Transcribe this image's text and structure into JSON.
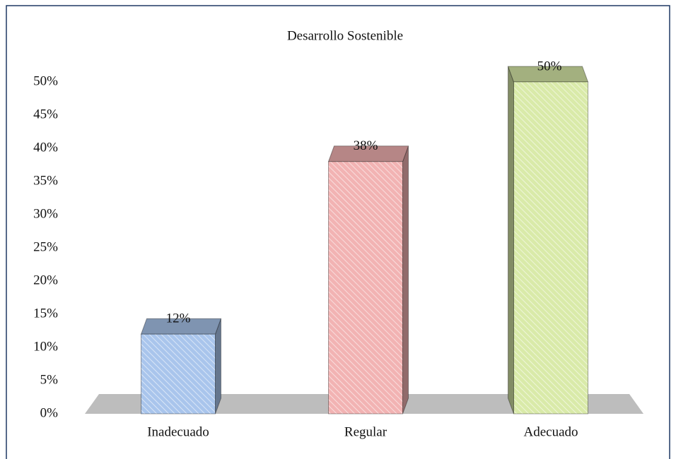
{
  "chart_data": {
    "type": "bar3d",
    "title": "Desarrollo Sostenible",
    "categories": [
      "Inadecuado",
      "Regular",
      "Adecuado"
    ],
    "values": [
      12,
      38,
      50
    ],
    "value_labels": [
      "12%",
      "38%",
      "50%"
    ],
    "colors": [
      "#a9c5ec",
      "#f2b3b3",
      "#d9eaa9"
    ],
    "ylim": [
      0,
      50
    ],
    "yticks": [
      {
        "value": 0,
        "label": "0%"
      },
      {
        "value": 5,
        "label": "5%"
      },
      {
        "value": 10,
        "label": "10%"
      },
      {
        "value": 15,
        "label": "15%"
      },
      {
        "value": 20,
        "label": "20%"
      },
      {
        "value": 25,
        "label": "25%"
      },
      {
        "value": 30,
        "label": "30%"
      },
      {
        "value": 35,
        "label": "35%"
      },
      {
        "value": 40,
        "label": "40%"
      },
      {
        "value": 45,
        "label": "45%"
      },
      {
        "value": 50,
        "label": "50%"
      }
    ],
    "grid": false
  }
}
